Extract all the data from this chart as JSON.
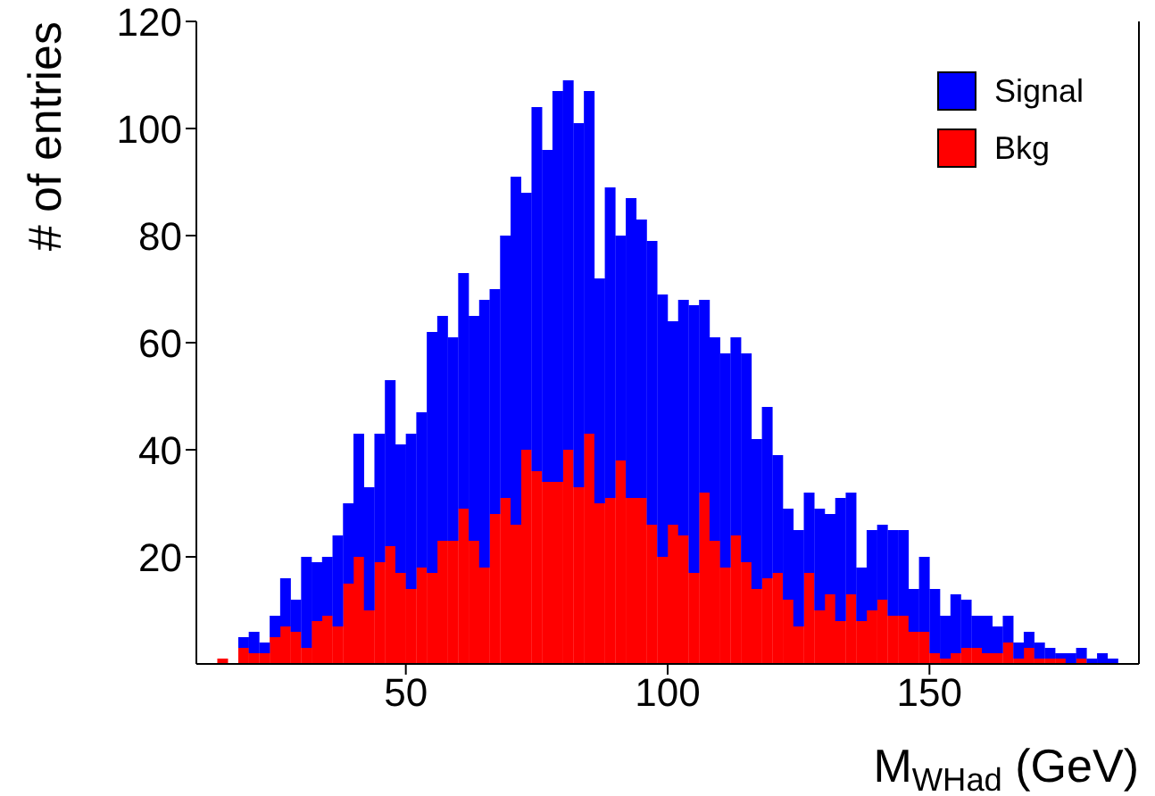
{
  "chart_data": {
    "type": "bar",
    "xlabel": "M$_{WHad}$ (GeV)",
    "ylabel": "# of entries",
    "stacked": true,
    "x": [
      15,
      17,
      19,
      21,
      23,
      25,
      27,
      29,
      31,
      33,
      35,
      37,
      39,
      41,
      43,
      45,
      47,
      49,
      51,
      53,
      55,
      57,
      59,
      61,
      63,
      65,
      67,
      69,
      71,
      73,
      75,
      77,
      79,
      81,
      83,
      85,
      87,
      89,
      91,
      93,
      95,
      97,
      99,
      101,
      103,
      105,
      107,
      109,
      111,
      113,
      115,
      117,
      119,
      121,
      123,
      125,
      127,
      129,
      131,
      133,
      135,
      137,
      139,
      141,
      143,
      145,
      147,
      149,
      151,
      153,
      155,
      157,
      159,
      161,
      163,
      165,
      167,
      169,
      171,
      173,
      175,
      177,
      179,
      181,
      183,
      185
    ],
    "series": [
      {
        "name": "Bkg",
        "color": "#ff0000",
        "values": [
          1,
          0,
          3,
          2,
          2,
          5,
          7,
          6,
          3,
          8,
          9,
          7,
          15,
          20,
          10,
          19,
          22,
          17,
          14,
          18,
          17,
          23,
          23,
          29,
          23,
          18,
          28,
          31,
          26,
          40,
          36,
          34,
          34,
          40,
          33,
          43,
          30,
          31,
          38,
          31,
          31,
          26,
          20,
          26,
          24,
          17,
          32,
          23,
          18,
          24,
          19,
          14,
          16,
          17,
          12,
          7,
          17,
          10,
          13,
          8,
          13,
          8,
          10,
          12,
          9,
          9,
          6,
          6,
          2,
          1,
          2,
          3,
          3,
          2,
          2,
          4,
          1,
          3,
          1,
          1,
          1,
          0,
          1,
          0,
          0,
          0
        ]
      },
      {
        "name": "Signal",
        "color": "#0000ff",
        "values": [
          0,
          0,
          2,
          4,
          2,
          4,
          9,
          6,
          17,
          11,
          11,
          17,
          15,
          23,
          23,
          24,
          31,
          24,
          29,
          29,
          45,
          42,
          38,
          44,
          42,
          50,
          42,
          49,
          65,
          48,
          68,
          62,
          73,
          69,
          68,
          64,
          42,
          58,
          42,
          56,
          52,
          53,
          49,
          38,
          44,
          50,
          36,
          38,
          40,
          37,
          39,
          28,
          32,
          22,
          17,
          18,
          15,
          19,
          15,
          23,
          19,
          10,
          15,
          14,
          16,
          16,
          8,
          14,
          12,
          8,
          11,
          9,
          6,
          7,
          5,
          5,
          3,
          3,
          3,
          2,
          1,
          2,
          2,
          1,
          2,
          1
        ]
      }
    ],
    "xlim": [
      10,
      190
    ],
    "xticks": [
      50,
      100,
      150
    ],
    "ylim": [
      0,
      120
    ],
    "yticks": [
      20,
      40,
      60,
      80,
      100,
      120
    ],
    "legend": "top right"
  }
}
